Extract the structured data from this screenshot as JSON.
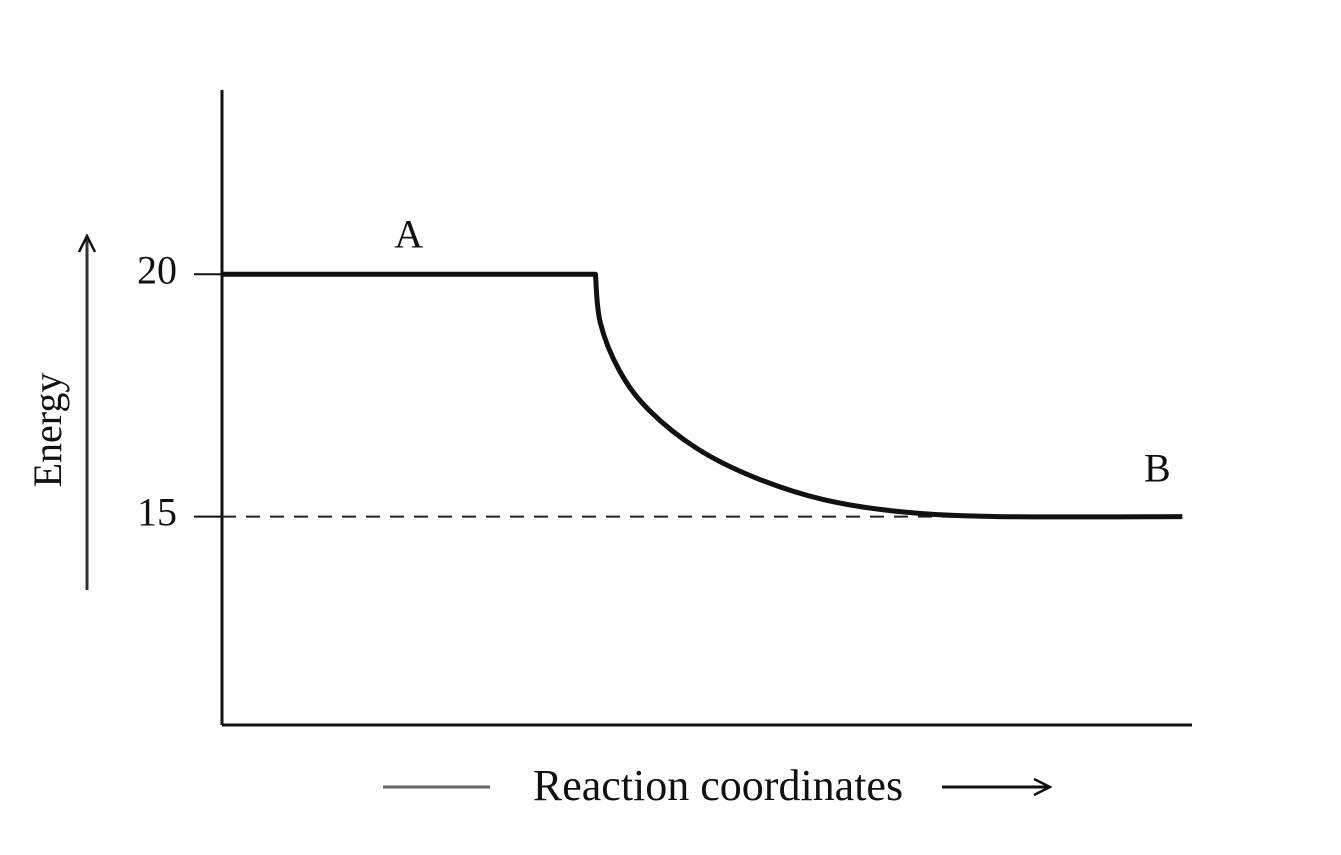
{
  "chart_data": {
    "type": "line",
    "x_label": "Reaction coordinates",
    "y_label": "Energy",
    "x": [
      0,
      3.85,
      3.9,
      4.1,
      4.4,
      4.9,
      5.5,
      6.2,
      7.0,
      8.0,
      9.9
    ],
    "values": [
      20,
      20,
      19.0,
      18.0,
      17.2,
      16.4,
      15.8,
      15.35,
      15.1,
      15,
      15
    ],
    "color": "#111111",
    "xlim": [
      0,
      10
    ],
    "ylim": [
      10.7,
      23.8
    ],
    "yticks": [
      15,
      20
    ],
    "reference_lines": [
      {
        "value": 15,
        "style": "dashed"
      }
    ],
    "annotations": [
      "A",
      "B"
    ]
  }
}
